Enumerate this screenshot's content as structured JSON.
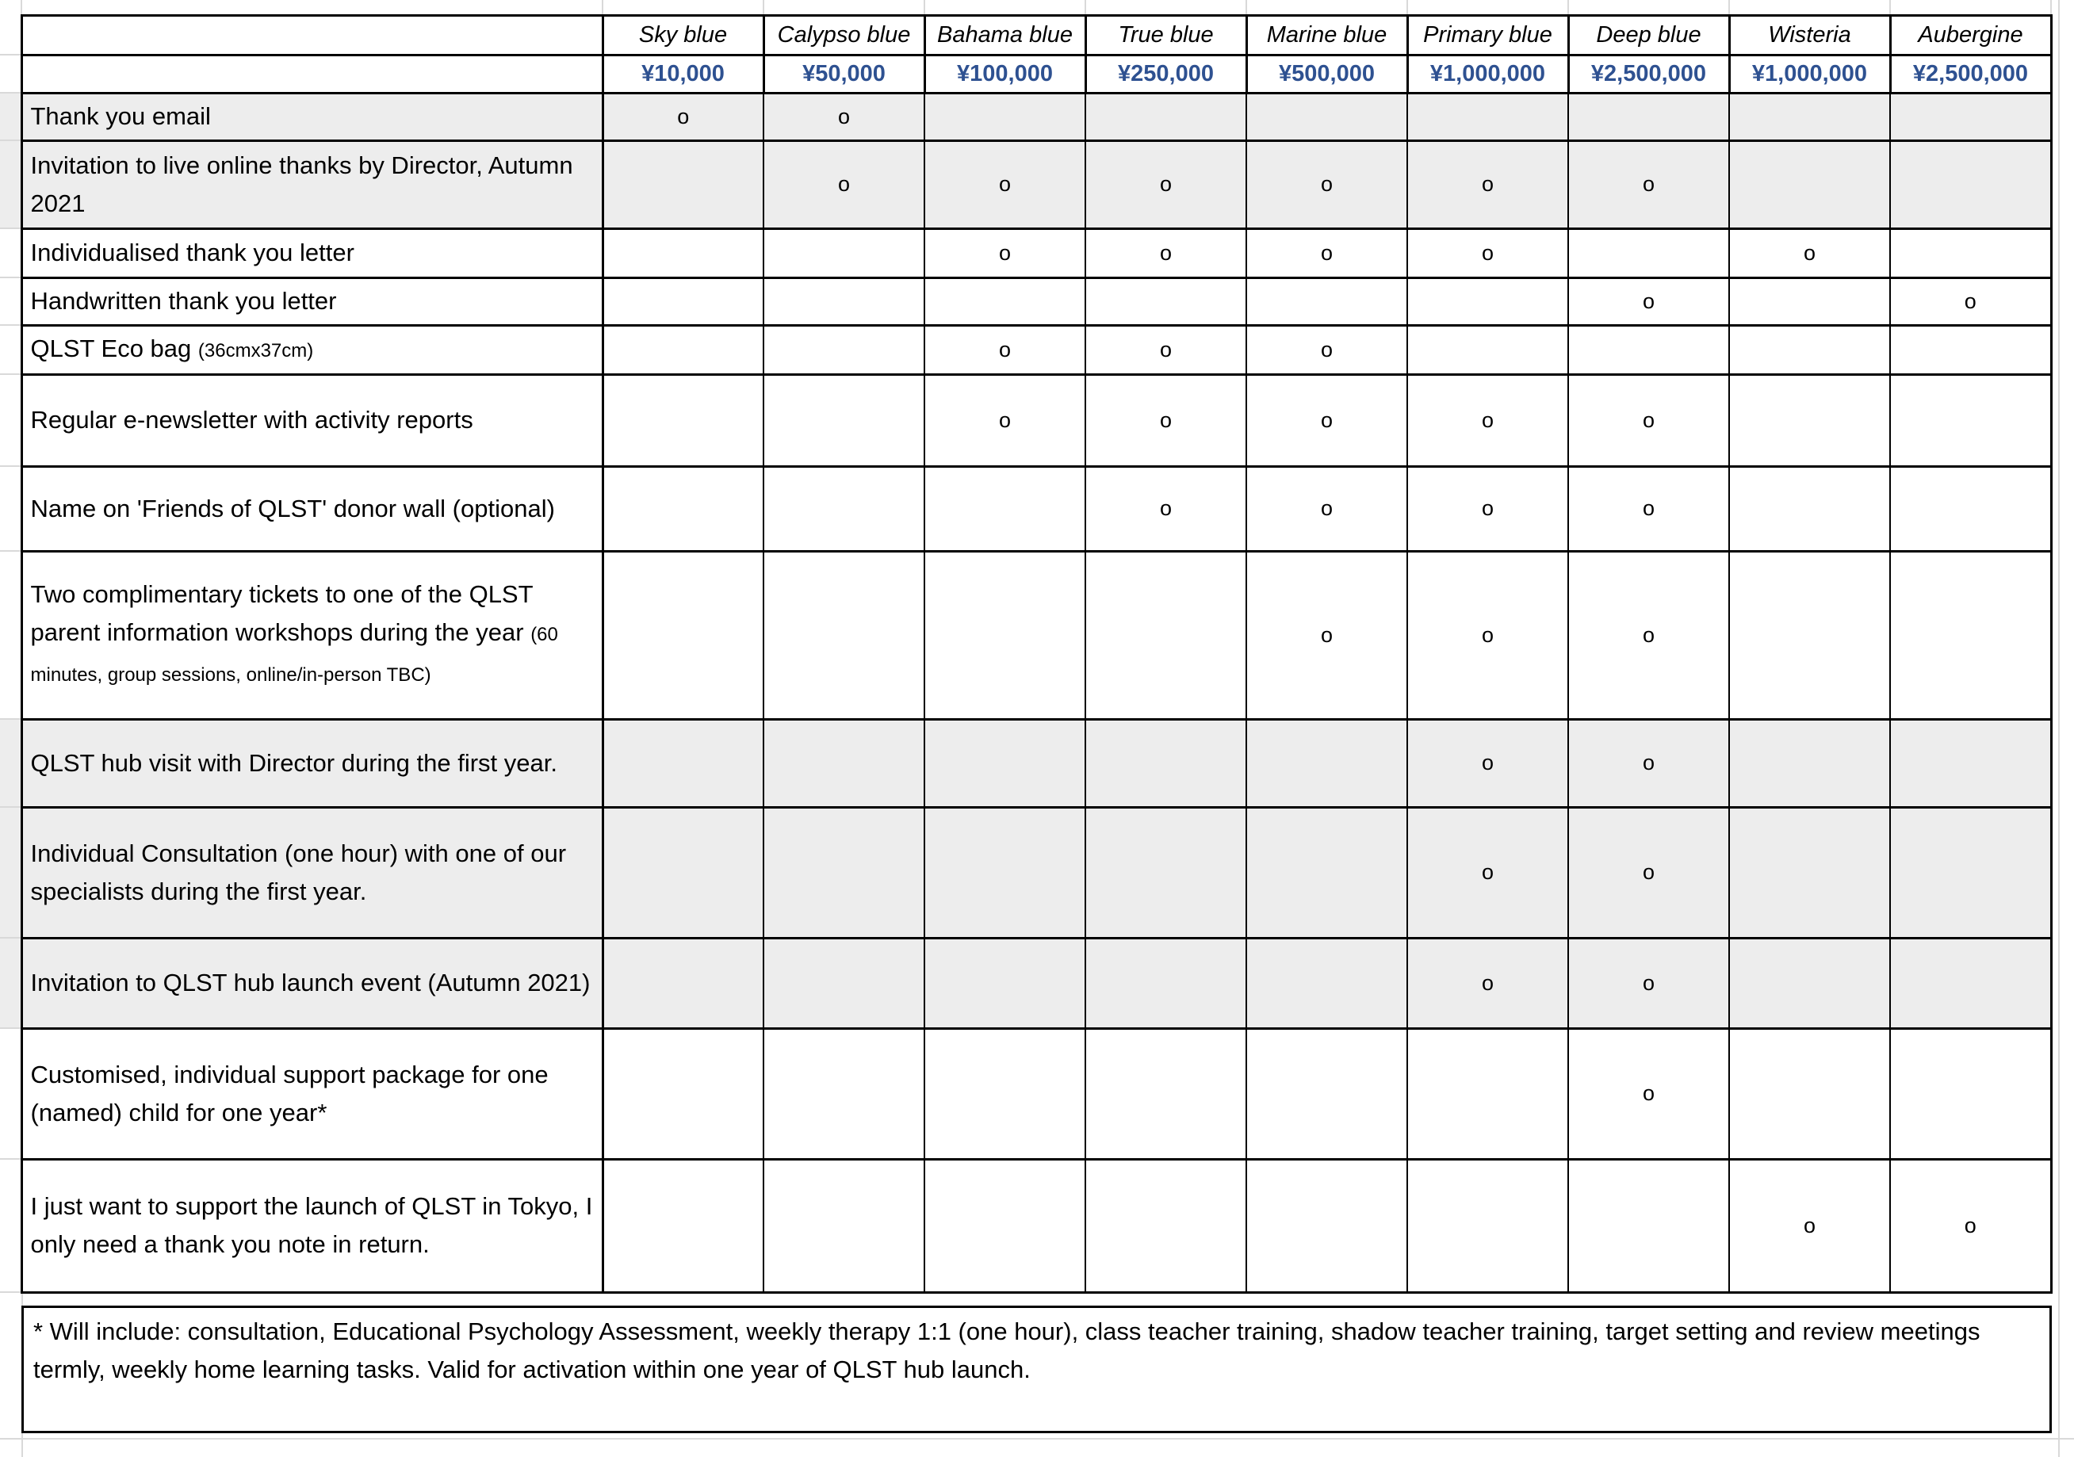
{
  "table": {
    "tiers": [
      {
        "name": "Sky blue",
        "amount": "¥10,000"
      },
      {
        "name": "Calypso blue",
        "amount": "¥50,000"
      },
      {
        "name": "Bahama blue",
        "amount": "¥100,000"
      },
      {
        "name": "True blue",
        "amount": "¥250,000"
      },
      {
        "name": "Marine blue",
        "amount": "¥500,000"
      },
      {
        "name": "Primary blue",
        "amount": "¥1,000,000"
      },
      {
        "name": "Deep blue",
        "amount": "¥2,500,000"
      },
      {
        "name": "Wisteria",
        "amount": "¥1,000,000"
      },
      {
        "name": "Aubergine",
        "amount": "¥2,500,000"
      }
    ],
    "mark": "o",
    "rows": [
      {
        "label": "Thank you email",
        "note": "",
        "shaded": true,
        "marks": [
          1,
          1,
          0,
          0,
          0,
          0,
          0,
          0,
          0
        ]
      },
      {
        "label": "Invitation to live online thanks by Director, Autumn 2021",
        "note": "",
        "shaded": true,
        "marks": [
          0,
          1,
          1,
          1,
          1,
          1,
          1,
          0,
          0
        ]
      },
      {
        "label": "Individualised thank you letter",
        "note": "",
        "shaded": false,
        "marks": [
          0,
          0,
          1,
          1,
          1,
          1,
          0,
          1,
          0
        ]
      },
      {
        "label": "Handwritten thank you letter",
        "note": "",
        "shaded": false,
        "marks": [
          0,
          0,
          0,
          0,
          0,
          0,
          1,
          0,
          1
        ]
      },
      {
        "label": "QLST Eco bag",
        "note": "(36cmx37cm)",
        "shaded": false,
        "marks": [
          0,
          0,
          1,
          1,
          1,
          0,
          0,
          0,
          0
        ]
      },
      {
        "label": "Regular e-newsletter with activity reports",
        "note": "",
        "shaded": false,
        "marks": [
          0,
          0,
          1,
          1,
          1,
          1,
          1,
          0,
          0
        ]
      },
      {
        "label": "Name on 'Friends of QLST' donor wall (optional)",
        "note": "",
        "shaded": false,
        "marks": [
          0,
          0,
          0,
          1,
          1,
          1,
          1,
          0,
          0
        ]
      },
      {
        "label": "Two complimentary tickets to one of the QLST parent information workshops during the year",
        "note": "(60 minutes, group sessions, online/in-person TBC)",
        "shaded": false,
        "marks": [
          0,
          0,
          0,
          0,
          1,
          1,
          1,
          0,
          0
        ]
      },
      {
        "label": "QLST hub visit with Director during the first year.",
        "note": "",
        "shaded": true,
        "marks": [
          0,
          0,
          0,
          0,
          0,
          1,
          1,
          0,
          0
        ]
      },
      {
        "label": "Individual Consultation (one hour) with one of our specialists during the first year.",
        "note": "",
        "shaded": true,
        "marks": [
          0,
          0,
          0,
          0,
          0,
          1,
          1,
          0,
          0
        ]
      },
      {
        "label": "Invitation to QLST hub launch event (Autumn 2021)",
        "note": "",
        "shaded": true,
        "marks": [
          0,
          0,
          0,
          0,
          0,
          1,
          1,
          0,
          0
        ]
      },
      {
        "label": "Customised, individual support package for one (named) child for one year*",
        "note": "",
        "shaded": false,
        "marks": [
          0,
          0,
          0,
          0,
          0,
          0,
          1,
          0,
          0
        ]
      },
      {
        "label": "I just want to support the launch of QLST in Tokyo, I only need a thank you note in return.",
        "note": "",
        "shaded": false,
        "marks": [
          0,
          0,
          0,
          0,
          0,
          0,
          0,
          1,
          1
        ]
      }
    ],
    "footnote": "* Will include: consultation, Educational Psychology Assessment, weekly therapy 1:1 (one hour), class teacher training, shadow teacher training, target setting and review meetings termly, weekly home learning tasks. Valid for activation within one year of QLST hub launch.",
    "colors": {
      "amount_text": "#2e5191",
      "row_shade": "#ededed",
      "border": "#000000",
      "gridline": "#d9d9d9"
    }
  }
}
